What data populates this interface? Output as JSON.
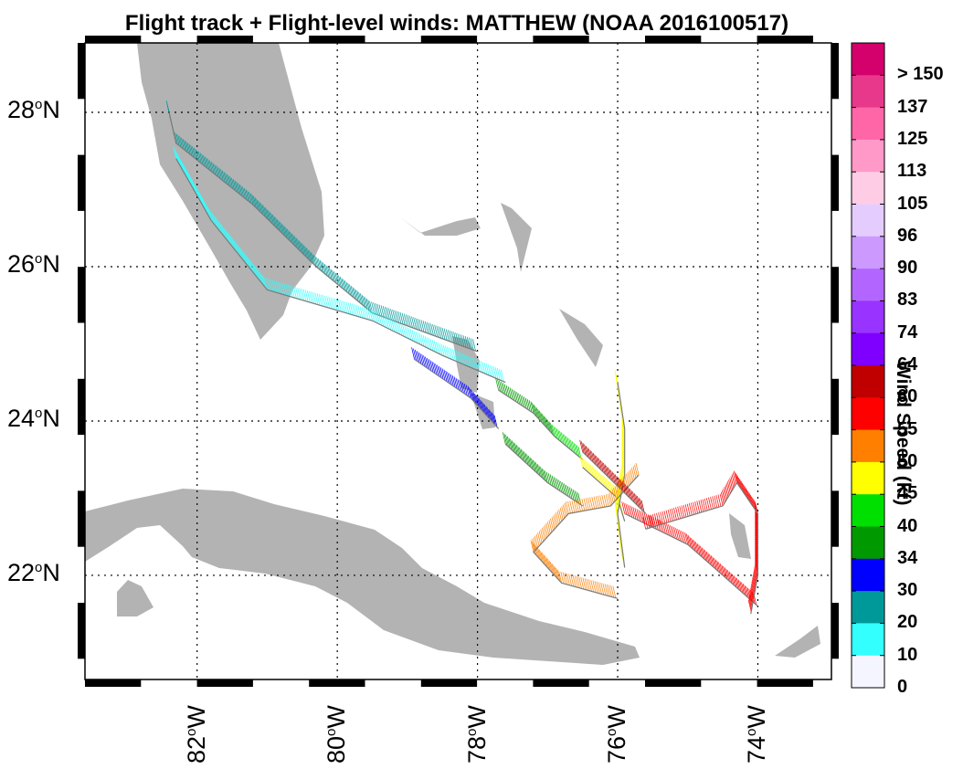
{
  "title": "Flight track + Flight-level winds: MATTHEW (NOAA 2016100517)",
  "map": {
    "lat_ticks": [
      {
        "deg": "28",
        "hemi": "N"
      },
      {
        "deg": "26",
        "hemi": "N"
      },
      {
        "deg": "24",
        "hemi": "N"
      },
      {
        "deg": "22",
        "hemi": "N"
      }
    ],
    "lon_ticks": [
      {
        "deg": "82",
        "hemi": "W"
      },
      {
        "deg": "80",
        "hemi": "W"
      },
      {
        "deg": "78",
        "hemi": "W"
      },
      {
        "deg": "76",
        "hemi": "W"
      },
      {
        "deg": "74",
        "hemi": "W"
      }
    ],
    "extent": {
      "lon_min": -83.6,
      "lon_max": -72.95,
      "lat_min": 20.65,
      "lat_max": 28.9
    },
    "grid": "dotted",
    "land_color": "#b3b3b3"
  },
  "colorbar": {
    "title": "Wind Speed (kt)",
    "labels": [
      "> 150",
      "137",
      "125",
      "113",
      "105",
      "96",
      "90",
      "83",
      "74",
      "64",
      "60",
      "55",
      "50",
      "45",
      "40",
      "34",
      "30",
      "20",
      "10",
      "0"
    ],
    "colors": [
      "#d4006b",
      "#e8388c",
      "#ff66a8",
      "#ff99c8",
      "#ffcce5",
      "#e5ccff",
      "#cc99ff",
      "#b366ff",
      "#9933ff",
      "#8000ff",
      "#c00000",
      "#ff0000",
      "#ff8000",
      "#ffff00",
      "#00e000",
      "#009a00",
      "#0000ff",
      "#009999",
      "#33ffff",
      "#f5f5ff"
    ]
  },
  "legs": [
    {
      "speed_index": 2,
      "path": [
        [
          -82.4,
          28.0
        ],
        [
          -82.3,
          27.6
        ],
        [
          -81.2,
          26.8
        ],
        [
          -80.3,
          26.0
        ],
        [
          -79.5,
          25.4
        ],
        [
          -78.0,
          24.9
        ]
      ]
    },
    {
      "speed_index": 1,
      "path": [
        [
          -82.3,
          27.4
        ],
        [
          -81.8,
          26.6
        ],
        [
          -81.0,
          25.7
        ],
        [
          -79.5,
          25.3
        ],
        [
          -78.5,
          24.85
        ],
        [
          -77.6,
          24.5
        ]
      ]
    },
    {
      "speed_index": 3,
      "path": [
        [
          -78.9,
          24.8
        ],
        [
          -78.1,
          24.3
        ],
        [
          -77.7,
          23.9
        ]
      ]
    },
    {
      "speed_index": 4,
      "path": [
        [
          -77.7,
          24.4
        ],
        [
          -77.2,
          24.1
        ],
        [
          -76.9,
          23.8
        ]
      ]
    },
    {
      "speed_index": 5,
      "path": [
        [
          -76.9,
          23.8
        ],
        [
          -76.5,
          23.5
        ]
      ]
    },
    {
      "speed_index": 4,
      "path": [
        [
          -77.6,
          23.7
        ],
        [
          -77.0,
          23.2
        ],
        [
          -76.5,
          22.9
        ]
      ]
    },
    {
      "speed_index": 6,
      "path": [
        [
          -76.5,
          23.4
        ],
        [
          -76.0,
          23.0
        ],
        [
          -75.9,
          22.7
        ]
      ]
    },
    {
      "speed_index": 6,
      "path": [
        [
          -76.0,
          24.5
        ],
        [
          -75.9,
          23.9
        ],
        [
          -75.9,
          23.3
        ],
        [
          -76.0,
          22.8
        ],
        [
          -75.9,
          22.1
        ]
      ]
    },
    {
      "speed_index": 7,
      "path": [
        [
          -75.7,
          23.3
        ],
        [
          -76.1,
          22.9
        ],
        [
          -76.7,
          22.8
        ],
        [
          -77.2,
          22.3
        ],
        [
          -76.8,
          21.9
        ],
        [
          -76.0,
          21.7
        ]
      ]
    },
    {
      "speed_index": 8,
      "path": [
        [
          -75.9,
          22.8
        ],
        [
          -75.0,
          22.4
        ],
        [
          -74.5,
          22.0
        ],
        [
          -74.0,
          21.6
        ]
      ]
    },
    {
      "speed_index": 8,
      "path": [
        [
          -75.6,
          22.6
        ],
        [
          -74.5,
          22.9
        ],
        [
          -74.3,
          23.2
        ],
        [
          -74.0,
          22.8
        ],
        [
          -74.0,
          22.0
        ],
        [
          -74.1,
          21.5
        ]
      ]
    },
    {
      "speed_index": 9,
      "path": [
        [
          -76.5,
          23.6
        ],
        [
          -75.6,
          22.8
        ]
      ]
    }
  ]
}
